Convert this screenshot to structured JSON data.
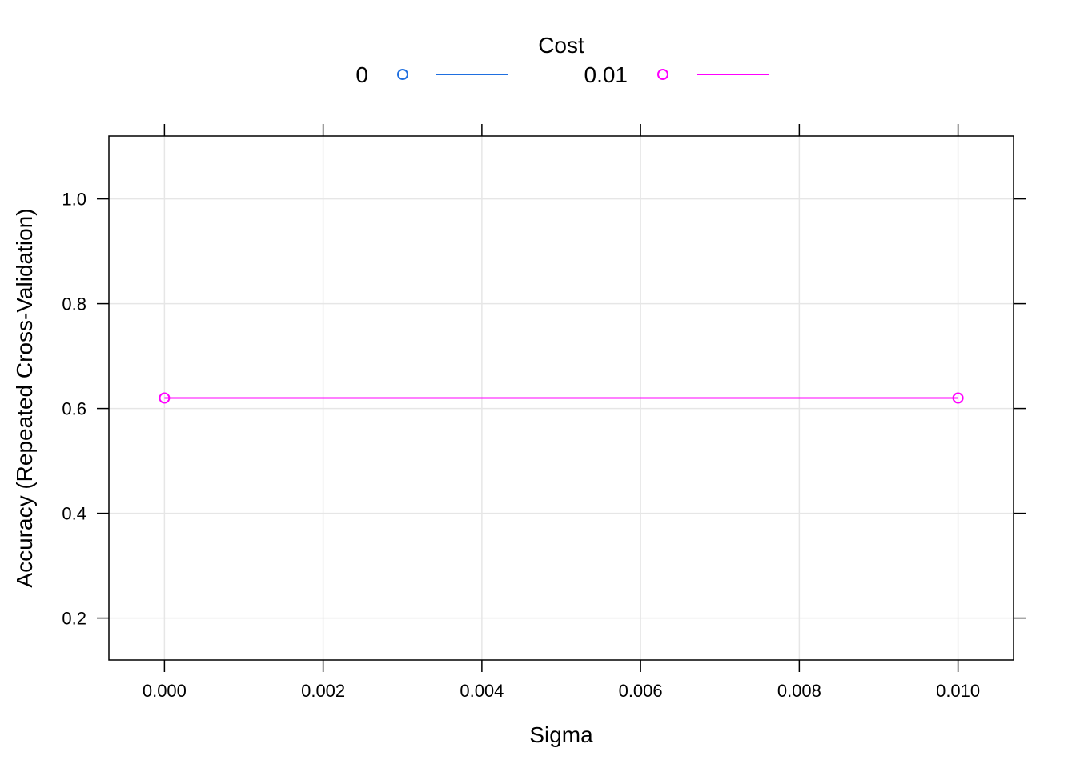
{
  "chart_data": {
    "type": "line",
    "title": "",
    "xlabel": "Sigma",
    "ylabel": "Accuracy (Repeated Cross-Validation)",
    "xlim": [
      -0.0007,
      0.0107
    ],
    "ylim": [
      0.12,
      1.12
    ],
    "x_ticks": [
      0.0,
      0.002,
      0.004,
      0.006,
      0.008,
      0.01
    ],
    "x_tick_labels": [
      "0.000",
      "0.002",
      "0.004",
      "0.006",
      "0.008",
      "0.010"
    ],
    "y_ticks": [
      0.2,
      0.4,
      0.6,
      0.8,
      1.0
    ],
    "y_tick_labels": [
      "0.2",
      "0.4",
      "0.6",
      "0.8",
      "1.0"
    ],
    "grid": true,
    "legend": {
      "title": "Cost",
      "placement": "top",
      "entries": [
        {
          "label": "0",
          "color": "#1f6fe0"
        },
        {
          "label": "0.01",
          "color": "#ff00ff"
        }
      ]
    },
    "series": [
      {
        "name": "0.01",
        "color": "#ff00ff",
        "marker": "open-circle",
        "x": [
          0.0,
          0.01
        ],
        "y": [
          0.62,
          0.62
        ]
      }
    ]
  }
}
